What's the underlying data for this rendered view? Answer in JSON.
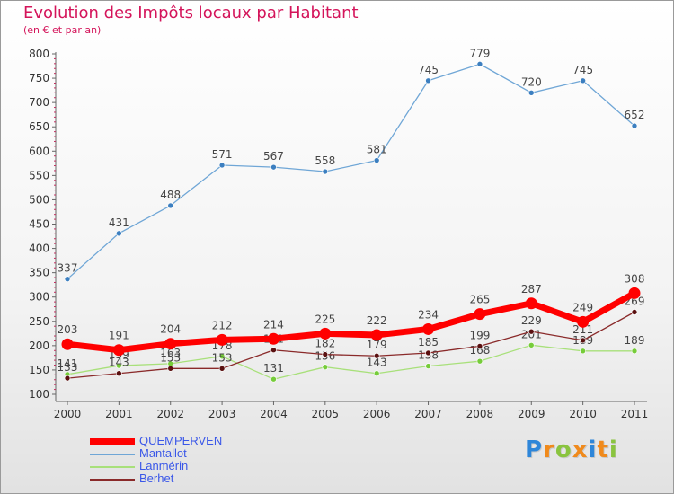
{
  "header": {
    "title": "Evolution des Impôts locaux par Habitant",
    "subtitle": "(en € et par an)"
  },
  "logo": {
    "letters": [
      "P",
      "r",
      "o",
      "x",
      "i",
      "t",
      "i"
    ],
    "colors": [
      "#2e86d9",
      "#f08a1c",
      "#8ac43f",
      "#f08a1c",
      "#2e86d9",
      "#f08a1c",
      "#8ac43f"
    ]
  },
  "chart_data": {
    "type": "line",
    "title": "Evolution des Impôts locaux par Habitant",
    "subtitle": "(en € et par an)",
    "xlabel": "",
    "ylabel": "",
    "categories": [
      "2000",
      "2001",
      "2002",
      "2003",
      "2004",
      "2005",
      "2006",
      "2007",
      "2008",
      "2009",
      "2010",
      "2011"
    ],
    "ylim": [
      100,
      800
    ],
    "yticks": [
      "100",
      "150",
      "200",
      "250",
      "300",
      "350",
      "400",
      "450",
      "500",
      "550",
      "600",
      "650",
      "700",
      "750",
      "800"
    ],
    "grid": false,
    "legend_position": "bottom-left",
    "series": [
      {
        "name": "Mantallot",
        "color": "#6fa6d6",
        "marker": "#3c7fc0",
        "weight": "thin",
        "values": [
          337,
          431,
          488,
          571,
          567,
          558,
          581,
          745,
          779,
          720,
          745,
          652
        ],
        "labels": [
          "337",
          "431",
          "488",
          "571",
          "567",
          "558",
          "581",
          "745",
          "779",
          "720",
          "745",
          "652"
        ]
      },
      {
        "name": "Lanmérin",
        "color": "#a8e07a",
        "marker": "#76cc3a",
        "weight": "thin",
        "values": [
          141,
          159,
          163,
          178,
          131,
          156,
          143,
          158,
          168,
          201,
          189,
          189
        ],
        "labels": [
          "141",
          "159",
          "163",
          "178",
          "131",
          "156",
          "143",
          "158",
          "168",
          "201",
          "189",
          "189"
        ]
      },
      {
        "name": "Berhet",
        "color": "#8a2a2a",
        "marker": "#5a1010",
        "weight": "thin",
        "values": [
          133,
          143,
          153,
          153,
          191,
          182,
          179,
          185,
          199,
          229,
          211,
          269
        ],
        "labels": [
          "133",
          "143",
          "153",
          "153",
          "191",
          "182",
          "179",
          "185",
          "199",
          "229",
          "211",
          "269"
        ]
      },
      {
        "name": "QUEMPERVEN",
        "color": "#ff0000",
        "marker": "#ff0000",
        "weight": "thick",
        "values": [
          203,
          191,
          204,
          212,
          214,
          225,
          222,
          234,
          265,
          287,
          249,
          308
        ],
        "labels": [
          "203",
          "191",
          "204",
          "212",
          "214",
          "225",
          "222",
          "234",
          "265",
          "287",
          "249",
          "308"
        ]
      }
    ],
    "legend": [
      "QUEMPERVEN",
      "Mantallot",
      "Lanmérin",
      "Berhet"
    ]
  }
}
